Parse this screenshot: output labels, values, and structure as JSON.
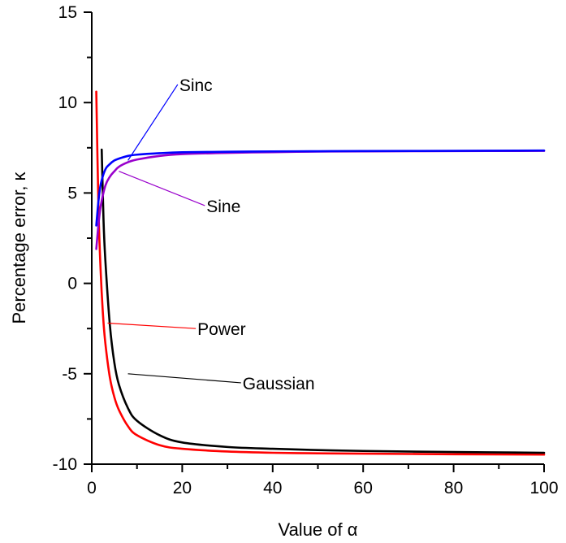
{
  "chart_data": {
    "type": "line",
    "title": "",
    "xlabel": "Value of α",
    "ylabel": "Percentage error, κ",
    "xlim": [
      0,
      100
    ],
    "ylim": [
      -10,
      15
    ],
    "x_ticks": [
      "0",
      "20",
      "40",
      "60",
      "80",
      "100"
    ],
    "y_ticks": [
      "-10",
      "-5",
      "0",
      "5",
      "10",
      "15"
    ],
    "grid": false,
    "legend": "inline annotations",
    "series": [
      {
        "name": "Sinc",
        "color": "#0000ff",
        "x": [
          1,
          1.5,
          2,
          3,
          4,
          5,
          6,
          8,
          10,
          15,
          20,
          30,
          40,
          50,
          60,
          80,
          100
        ],
        "y": [
          3.2,
          4.6,
          5.5,
          6.3,
          6.6,
          6.8,
          6.9,
          7.05,
          7.12,
          7.2,
          7.25,
          7.28,
          7.3,
          7.31,
          7.32,
          7.33,
          7.35
        ]
      },
      {
        "name": "Sine",
        "color": "#9900cc",
        "x": [
          1,
          1.5,
          2,
          3,
          4,
          5,
          6,
          8,
          10,
          15,
          20,
          30,
          40,
          50,
          60,
          80,
          100
        ],
        "y": [
          1.9,
          3.3,
          4.3,
          5.4,
          5.9,
          6.2,
          6.45,
          6.7,
          6.85,
          7.05,
          7.15,
          7.22,
          7.26,
          7.29,
          7.3,
          7.32,
          7.33
        ]
      },
      {
        "name": "Power",
        "color": "#ff0000",
        "x": [
          1,
          1.5,
          2,
          2.5,
          3,
          4,
          5,
          6,
          8,
          10,
          15,
          20,
          30,
          40,
          50,
          60,
          80,
          100
        ],
        "y": [
          10.6,
          4.0,
          0.5,
          -1.8,
          -3.3,
          -5.2,
          -6.3,
          -7.0,
          -7.9,
          -8.4,
          -8.95,
          -9.15,
          -9.3,
          -9.37,
          -9.4,
          -9.42,
          -9.45,
          -9.47
        ]
      },
      {
        "name": "Gaussian",
        "color": "#000000",
        "x": [
          2.2,
          2.6,
          3,
          4,
          5,
          6,
          8,
          10,
          15,
          20,
          30,
          40,
          50,
          60,
          80,
          100
        ],
        "y": [
          7.4,
          3.5,
          1.3,
          -2.3,
          -4.4,
          -5.6,
          -6.9,
          -7.6,
          -8.4,
          -8.8,
          -9.05,
          -9.15,
          -9.22,
          -9.27,
          -9.33,
          -9.37
        ]
      }
    ],
    "annotations": [
      {
        "text": "Sinc",
        "color": "#0000ff",
        "text_x": 19,
        "text_y": 11.0,
        "point_x": 8,
        "point_y": 6.8
      },
      {
        "text": "Sine",
        "color": "#9900cc",
        "text_x": 25,
        "text_y": 4.3,
        "point_x": 6,
        "point_y": 6.2
      },
      {
        "text": "Power",
        "color": "#ff0000",
        "text_x": 23,
        "text_y": -2.5,
        "point_x": 3.5,
        "point_y": -2.2
      },
      {
        "text": "Gaussian",
        "color": "#000000",
        "text_x": 33,
        "text_y": -5.5,
        "point_x": 8,
        "point_y": -5.0
      }
    ]
  }
}
